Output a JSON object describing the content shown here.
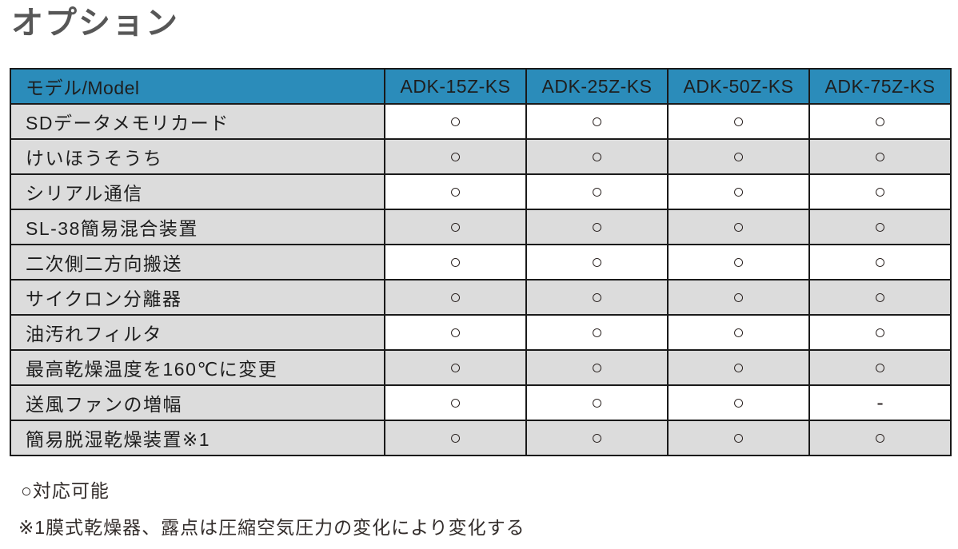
{
  "page": {
    "title": "オプション"
  },
  "table": {
    "header": {
      "model_label": "モデル/Model",
      "columns": [
        "ADK-15Z-KS",
        "ADK-25Z-KS",
        "ADK-50Z-KS",
        "ADK-75Z-KS"
      ]
    },
    "rows": [
      {
        "label": "SDデータメモリカード",
        "values": [
          "○",
          "○",
          "○",
          "○"
        ]
      },
      {
        "label": "けいほうそうち",
        "values": [
          "○",
          "○",
          "○",
          "○"
        ]
      },
      {
        "label": "シリアル通信",
        "values": [
          "○",
          "○",
          "○",
          "○"
        ]
      },
      {
        "label": "SL-38簡易混合装置",
        "values": [
          "○",
          "○",
          "○",
          "○"
        ]
      },
      {
        "label": "二次側二方向搬送",
        "values": [
          "○",
          "○",
          "○",
          "○"
        ]
      },
      {
        "label": "サイクロン分離器",
        "values": [
          "○",
          "○",
          "○",
          "○"
        ]
      },
      {
        "label": "油汚れフィルタ",
        "values": [
          "○",
          "○",
          "○",
          "○"
        ]
      },
      {
        "label": "最高乾燥温度を160℃に変更",
        "values": [
          "○",
          "○",
          "○",
          "○"
        ]
      },
      {
        "label": "送風ファンの増幅",
        "values": [
          "○",
          "○",
          "○",
          "-"
        ]
      },
      {
        "label": "簡易脱湿乾燥装置※1",
        "values": [
          "○",
          "○",
          "○",
          "○"
        ]
      }
    ]
  },
  "footnotes": {
    "legend": "○対応可能",
    "note": "※1膜式乾燥器、露点は圧縮空気圧力の変化により変化する"
  },
  "colors": {
    "header_bg": "#2b8cba",
    "header_text": "#ffffff",
    "row_gray": "#dcdcdc",
    "row_white": "#ffffff",
    "border": "#1a1a1a",
    "title_text": "#575757",
    "body_text": "#1e1e1e"
  }
}
